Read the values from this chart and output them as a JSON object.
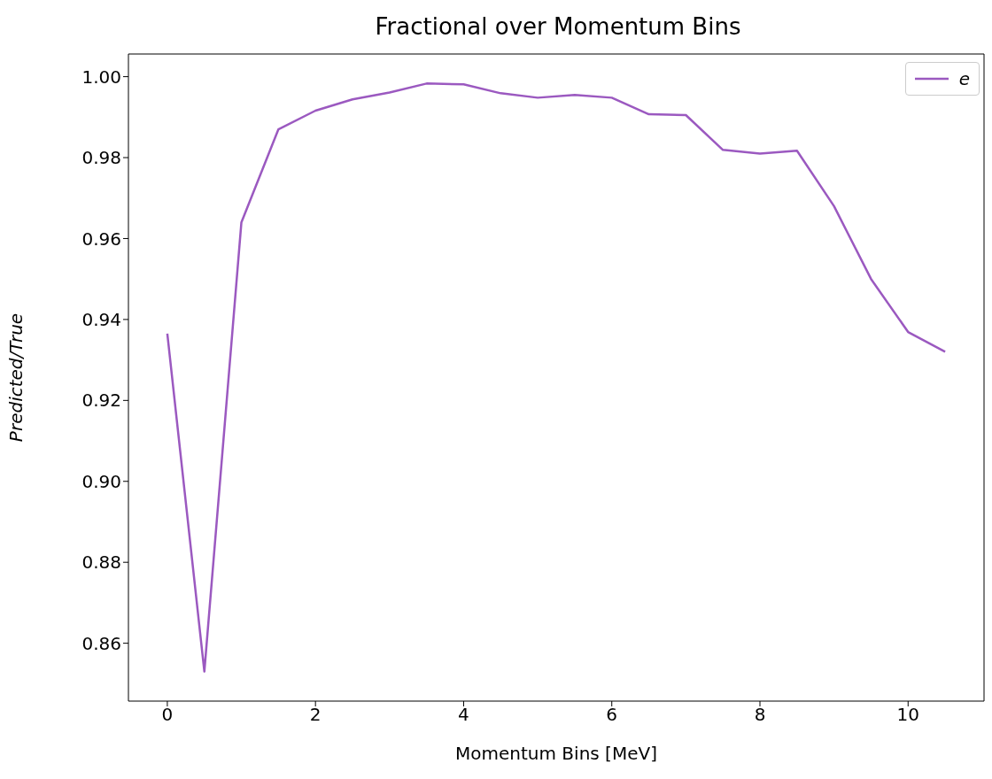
{
  "chart_data": {
    "type": "line",
    "title": "Fractional over Momentum Bins",
    "xlabel": "Momentum Bins [MeV]",
    "ylabel": "Predicted/True",
    "x": [
      0,
      0.5,
      1,
      1.5,
      2,
      2.5,
      3,
      3.5,
      4,
      4.5,
      5,
      5.5,
      6,
      6.5,
      7,
      7.5,
      8,
      8.5,
      9,
      9.5,
      10,
      10.5
    ],
    "series": [
      {
        "name": "e",
        "color": "#9b59c0",
        "values": [
          0.9365,
          0.853,
          0.964,
          0.987,
          0.9916,
          0.9944,
          0.9961,
          0.9983,
          0.9981,
          0.9959,
          0.9948,
          0.9955,
          0.9948,
          0.9907,
          0.9905,
          0.9819,
          0.981,
          0.9817,
          0.968,
          0.95,
          0.9369,
          0.932
        ]
      }
    ],
    "xlim": [
      -0.525,
      11.025
    ],
    "xticks": [
      0,
      2,
      4,
      6,
      8,
      10
    ],
    "ylim": [
      0.8457,
      1.0056
    ],
    "yticks": [
      0.86,
      0.88,
      {
        "value": 0.9,
        "label": "0.90"
      },
      0.92,
      0.94,
      0.96,
      0.98,
      {
        "value": 1,
        "label": "1.00"
      }
    ],
    "legend": "top right",
    "marker": "none",
    "line_style": "solid",
    "grid": false
  }
}
